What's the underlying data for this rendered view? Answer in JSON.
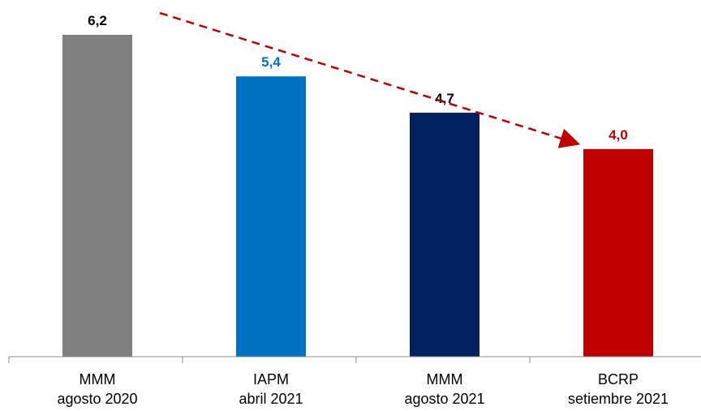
{
  "chart_data": {
    "type": "bar",
    "categories": [
      [
        "MMM",
        "agosto 2020"
      ],
      [
        "IAPM",
        "abril 2021"
      ],
      [
        "MMM",
        "agosto 2021"
      ],
      [
        "BCRP",
        "setiembre 2021"
      ]
    ],
    "values": [
      6.2,
      5.4,
      4.7,
      4.0
    ],
    "value_labels": [
      "6,2",
      "5,4",
      "4,7",
      "4,0"
    ],
    "bar_colors": [
      "#808080",
      "#0070c0",
      "#002060",
      "#c00000"
    ],
    "value_label_colors": [
      "#000000",
      "#0070c0",
      "#000000",
      "#c00000"
    ],
    "ylim": [
      0,
      6.2
    ],
    "grid": false,
    "trend_arrow": {
      "from_category": 0,
      "to_category": 3,
      "color": "#c00000",
      "style": "dashed"
    },
    "title": "",
    "xlabel": "",
    "ylabel": ""
  }
}
